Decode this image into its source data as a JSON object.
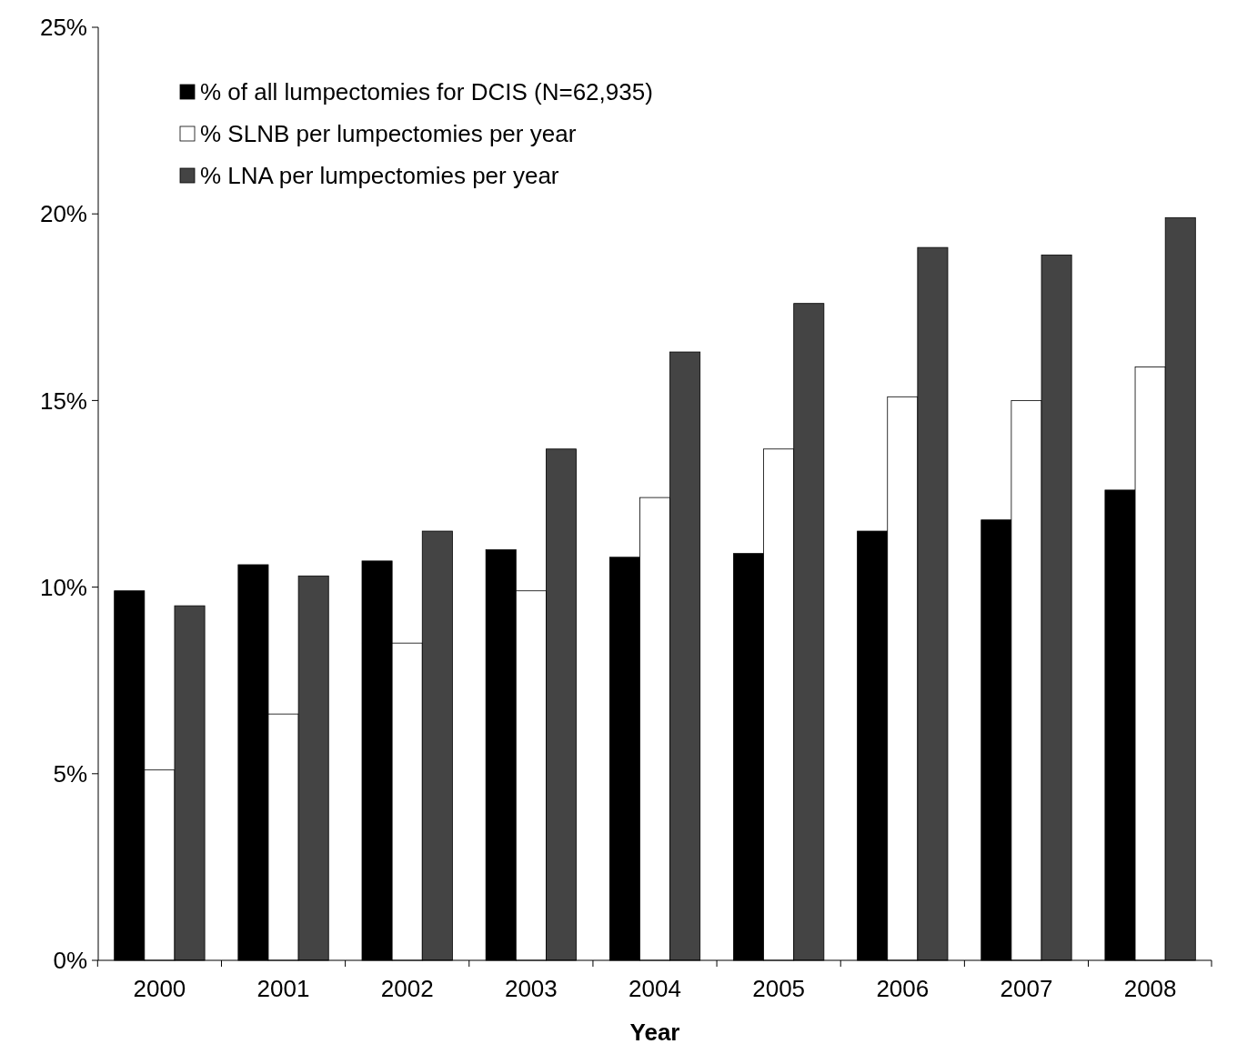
{
  "chart_data": {
    "type": "bar",
    "xlabel": "Year",
    "categories": [
      "2000",
      "2001",
      "2002",
      "2003",
      "2004",
      "2005",
      "2006",
      "2007",
      "2008"
    ],
    "series": [
      {
        "name": "% of all lumpectomies for DCIS (N=62,935)",
        "color": "#000000",
        "values": [
          9.9,
          10.6,
          10.7,
          11.0,
          10.8,
          10.9,
          11.5,
          11.8,
          12.6
        ]
      },
      {
        "name": "% SLNB per lumpectomies per year",
        "color": "#ffffff",
        "values": [
          5.1,
          6.6,
          8.5,
          9.9,
          12.4,
          13.7,
          15.1,
          15.0,
          15.9
        ]
      },
      {
        "name": "% LNA per lumpectomies per year",
        "color": "#444444",
        "values": [
          9.5,
          10.3,
          11.5,
          13.7,
          16.3,
          17.6,
          19.1,
          18.9,
          19.9
        ]
      }
    ],
    "ylim": [
      0,
      25
    ],
    "yticks": [
      {
        "value": 0,
        "label": "0%"
      },
      {
        "value": 5,
        "label": "5%"
      },
      {
        "value": 10,
        "label": "10%"
      },
      {
        "value": 15,
        "label": "15%"
      },
      {
        "value": 20,
        "label": "20%"
      },
      {
        "value": 25,
        "label": "25%"
      }
    ],
    "grid": false,
    "legend": "top left"
  }
}
